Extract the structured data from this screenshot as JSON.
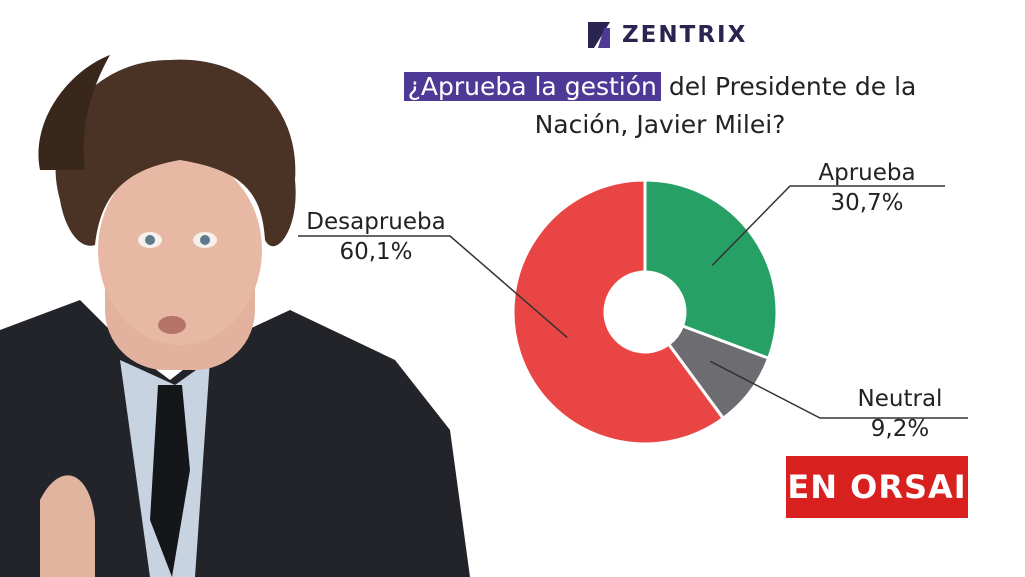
{
  "brand": {
    "logo_text": "ZENTRIX",
    "accent": "#4e3a96"
  },
  "title": {
    "highlight": "¿Aprueba la gestión",
    "rest_line1": " del Presidente de la",
    "line2": "Nación, Javier Milei?"
  },
  "badge": {
    "text": "EN ORSAI",
    "color": "#d8201f"
  },
  "chart_data": {
    "type": "pie",
    "donut": true,
    "slices": [
      {
        "label": "Aprueba",
        "display": "30,7%",
        "value": 30.7,
        "color": "#27a065"
      },
      {
        "label": "Neutral",
        "display": "9,2%",
        "value": 9.2,
        "color": "#6d6c71"
      },
      {
        "label": "Desaprueba",
        "display": "60,1%",
        "value": 60.1,
        "color": "#ea4545"
      }
    ],
    "start_angle": "top",
    "direction": "clockwise"
  }
}
